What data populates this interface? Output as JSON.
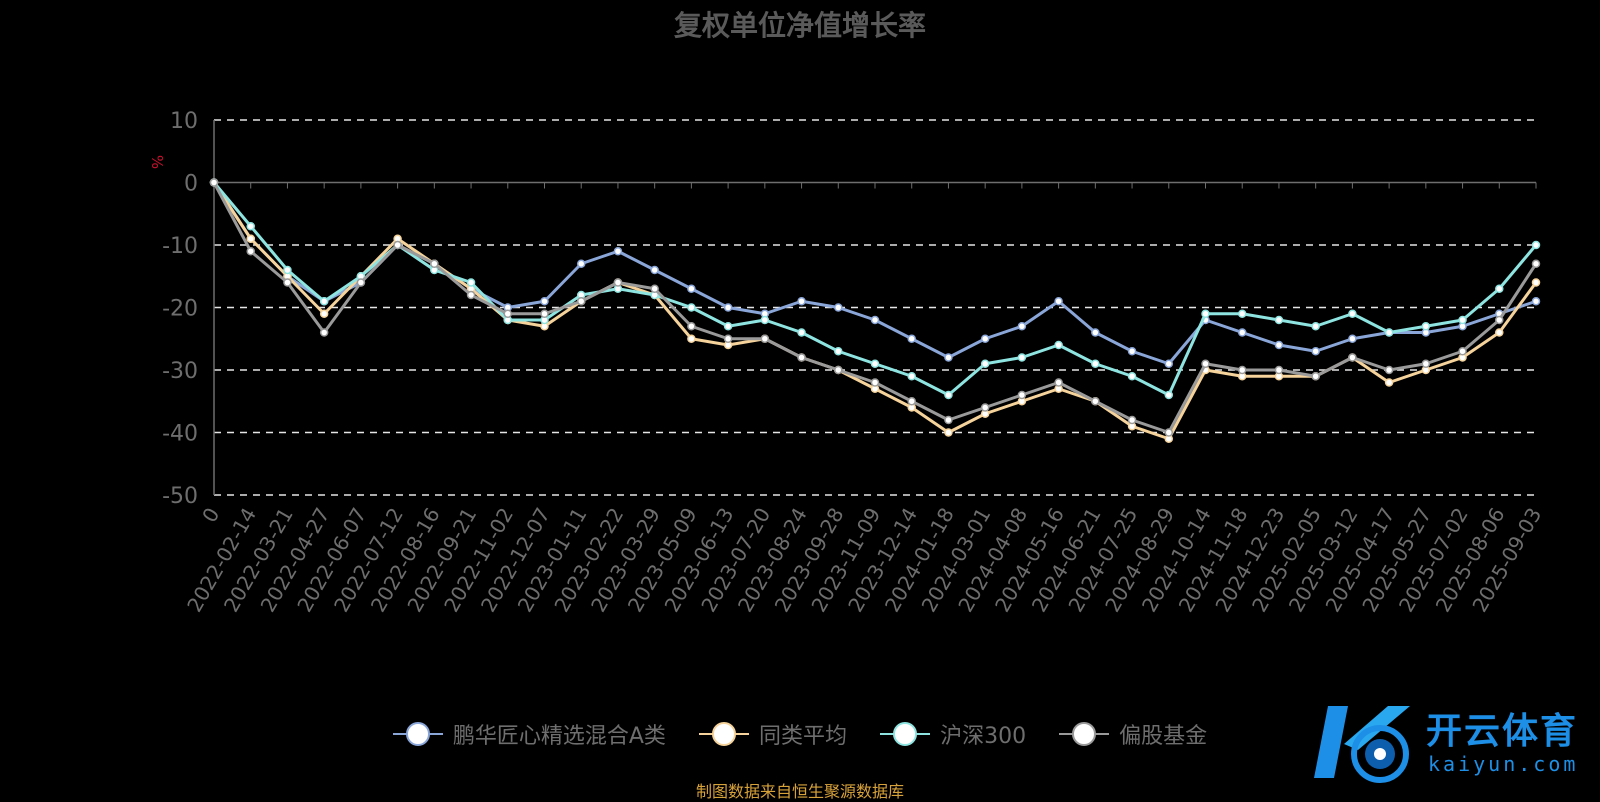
{
  "chart_data": {
    "type": "line",
    "title": "复权单位净值增长率",
    "ylabel": "%",
    "ylim": [
      -50,
      10
    ],
    "yticks": [
      10,
      0,
      -10,
      -20,
      -30,
      -40,
      -50
    ],
    "grid": true,
    "legend_position": "bottom",
    "x": [
      "0",
      "2022-02-14",
      "2022-03-21",
      "2022-04-27",
      "2022-06-07",
      "2022-07-12",
      "2022-08-16",
      "2022-09-21",
      "2022-11-02",
      "2022-12-07",
      "2023-01-11",
      "2023-02-22",
      "2023-03-29",
      "2023-05-09",
      "2023-06-13",
      "2023-07-20",
      "2023-08-24",
      "2023-09-28",
      "2023-11-09",
      "2023-12-14",
      "2024-01-18",
      "2024-03-01",
      "2024-04-08",
      "2024-05-16",
      "2024-06-21",
      "2024-07-25",
      "2024-08-29",
      "2024-10-14",
      "2024-11-18",
      "2024-12-23",
      "2025-02-05",
      "2025-03-12",
      "2025-04-17",
      "2025-05-27",
      "2025-07-02",
      "2025-08-06",
      "2025-09-03"
    ],
    "series": [
      {
        "name": "鹏华匠心精选混合A类",
        "color": "#8aa6d8",
        "values": [
          0,
          -9,
          -15,
          -19,
          -16,
          -10,
          -13,
          -17,
          -20,
          -19,
          -13,
          -11,
          -14,
          -17,
          -20,
          -21,
          -19,
          -20,
          -22,
          -25,
          -28,
          -25,
          -23,
          -19,
          -24,
          -27,
          -29,
          -22,
          -24,
          -26,
          -27,
          -25,
          -24,
          -24,
          -23,
          -21,
          -19
        ]
      },
      {
        "name": "同类平均",
        "color": "#f5d39b",
        "values": [
          0,
          -9,
          -15,
          -21,
          -15,
          -9,
          -13,
          -17,
          -22,
          -23,
          -19,
          -16,
          -18,
          -25,
          -26,
          -25,
          -28,
          -30,
          -33,
          -36,
          -40,
          -37,
          -35,
          -33,
          -35,
          -39,
          -41,
          -30,
          -31,
          -31,
          -31,
          -28,
          -32,
          -30,
          -28,
          -24,
          -16
        ]
      },
      {
        "name": "沪深300",
        "color": "#8ee4e0",
        "values": [
          0,
          -7,
          -14,
          -19,
          -15,
          -10,
          -14,
          -16,
          -22,
          -22,
          -18,
          -17,
          -18,
          -20,
          -23,
          -22,
          -24,
          -27,
          -29,
          -31,
          -34,
          -29,
          -28,
          -26,
          -29,
          -31,
          -34,
          -21,
          -21,
          -22,
          -23,
          -21,
          -24,
          -23,
          -22,
          -17,
          -10
        ]
      },
      {
        "name": "偏股基金",
        "color": "#9a9a9a",
        "values": [
          0,
          -11,
          -16,
          -24,
          -16,
          -10,
          -13,
          -18,
          -21,
          -21,
          -19,
          -16,
          -17,
          -23,
          -25,
          -25,
          -28,
          -30,
          -32,
          -35,
          -38,
          -36,
          -34,
          -32,
          -35,
          -38,
          -40,
          -29,
          -30,
          -30,
          -31,
          -28,
          -30,
          -29,
          -27,
          -22,
          -13
        ]
      }
    ]
  },
  "legend": {
    "items": [
      "鹏华匠心精选混合A类",
      "同类平均",
      "沪深300",
      "偏股基金"
    ]
  },
  "footer": {
    "source_note": "制图数据来自恒生聚源数据库"
  },
  "watermark": {
    "brand": "开云体育",
    "site": "kaiyun.com"
  }
}
